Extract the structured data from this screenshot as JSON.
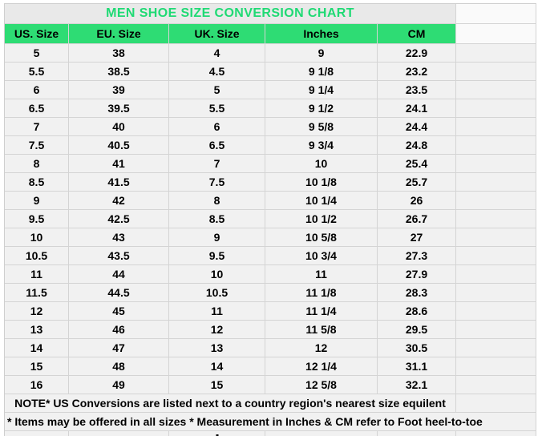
{
  "colors": {
    "header_bg": "#2edc74",
    "title_text": "#1fda74",
    "cell_bg": "#f1f1f1",
    "gridline": "#d4d4d4"
  },
  "chart_data": {
    "type": "table",
    "title": "MEN SHOE SIZE CONVERSION CHART",
    "columns": [
      "US. Size",
      "EU. Size",
      "UK. Size",
      "Inches",
      "CM"
    ],
    "rows": [
      [
        "5",
        "38",
        "4",
        "9",
        "22.9"
      ],
      [
        "5.5",
        "38.5",
        "4.5",
        "9 1/8",
        "23.2"
      ],
      [
        "6",
        "39",
        "5",
        "9 1/4",
        "23.5"
      ],
      [
        "6.5",
        "39.5",
        "5.5",
        "9 1/2",
        "24.1"
      ],
      [
        "7",
        "40",
        "6",
        "9 5/8",
        "24.4"
      ],
      [
        "7.5",
        "40.5",
        "6.5",
        "9 3/4",
        "24.8"
      ],
      [
        "8",
        "41",
        "7",
        "10",
        "25.4"
      ],
      [
        "8.5",
        "41.5",
        "7.5",
        "10 1/8",
        "25.7"
      ],
      [
        "9",
        "42",
        "8",
        "10 1/4",
        "26"
      ],
      [
        "9.5",
        "42.5",
        "8.5",
        "10 1/2",
        "26.7"
      ],
      [
        "10",
        "43",
        "9",
        "10 5/8",
        "27"
      ],
      [
        "10.5",
        "43.5",
        "9.5",
        "10 3/4",
        "27.3"
      ],
      [
        "11",
        "44",
        "10",
        "11",
        "27.9"
      ],
      [
        "11.5",
        "44.5",
        "10.5",
        "11 1/8",
        "28.3"
      ],
      [
        "12",
        "45",
        "11",
        "11 1/4",
        "28.6"
      ],
      [
        "13",
        "46",
        "12",
        "11 5/8",
        "29.5"
      ],
      [
        "14",
        "47",
        "13",
        "12",
        "30.5"
      ],
      [
        "15",
        "48",
        "14",
        "12 1/4",
        "31.1"
      ],
      [
        "16",
        "49",
        "15",
        "12 5/8",
        "32.1"
      ]
    ],
    "notes": [
      "NOTE* US Conversions are listed next to a country region's nearest size equilent",
      "* Items may be offered in all sizes * Measurement in Inches & CM refer to Foot heel-to-toe"
    ],
    "layout": {
      "grid": "on",
      "legend": "none"
    }
  }
}
